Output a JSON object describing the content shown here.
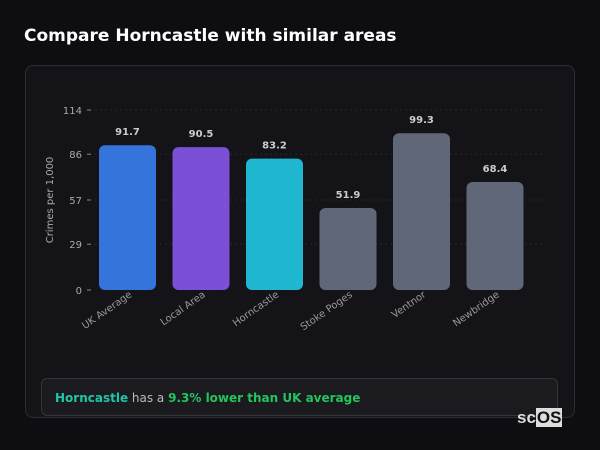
{
  "title": "Compare Horncastle with similar areas",
  "chart_data": {
    "type": "bar",
    "categories": [
      "UK Average",
      "Local Area",
      "Horncastle",
      "Stoke Poges",
      "Ventnor",
      "Newbridge"
    ],
    "values": [
      91.7,
      90.5,
      83.2,
      51.9,
      99.3,
      68.4
    ],
    "colors": [
      "#3574db",
      "#7b4fd6",
      "#20b8d0",
      "#5f6778",
      "#5f6778",
      "#5f6778"
    ],
    "ylabel": "Crimes per 1,000",
    "yticks": [
      0,
      29,
      57,
      86,
      114
    ],
    "ylim": [
      0,
      114
    ]
  },
  "summary": {
    "area": "Horncastle",
    "middle": " has a ",
    "result": "9.3% lower than UK average"
  },
  "logo": {
    "text1": "sc",
    "text2": "OS"
  }
}
